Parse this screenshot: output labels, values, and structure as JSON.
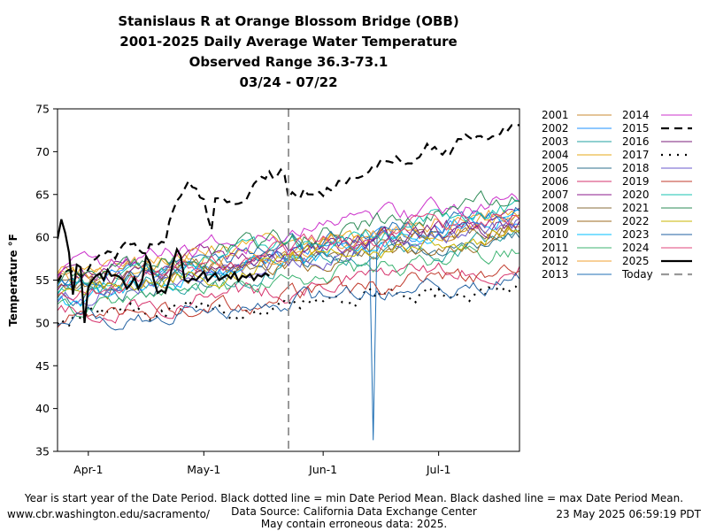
{
  "chart_data": {
    "type": "line",
    "title": [
      "Stanislaus R at Orange Blossom Bridge (OBB)",
      "2001-2025 Daily Average Water Temperature",
      "Observed Range 36.3-73.1",
      "03/24 - 07/22"
    ],
    "xlabel": "",
    "ylabel": "Temperature °F",
    "x_range_days": [
      0,
      120
    ],
    "ylim": [
      35,
      75
    ],
    "y_ticks": [
      35,
      40,
      45,
      50,
      55,
      60,
      65,
      70,
      75
    ],
    "x_ticks": [
      {
        "label": "Apr-1",
        "day": 8
      },
      {
        "label": "May-1",
        "day": 38
      },
      {
        "label": "Jun-1",
        "day": 69
      },
      {
        "label": "Jul-1",
        "day": 99
      }
    ],
    "today_day": 60,
    "legend_placement": "outside-right",
    "series": [
      {
        "name": "2001",
        "color": "#c88a30",
        "style": "solid",
        "start": 54.8,
        "slope": 0.06
      },
      {
        "name": "2002",
        "color": "#1e90ff",
        "style": "solid",
        "start": 54.0,
        "slope": 0.07
      },
      {
        "name": "2003",
        "color": "#20a0a0",
        "style": "solid",
        "start": 53.0,
        "slope": 0.06
      },
      {
        "name": "2004",
        "color": "#e6a817",
        "style": "solid",
        "start": 55.5,
        "slope": 0.06
      },
      {
        "name": "2005",
        "color": "#2e6f8e",
        "style": "solid",
        "start": 52.5,
        "slope": 0.07
      },
      {
        "name": "2006",
        "color": "#d6336c",
        "style": "solid",
        "start": 51.0,
        "slope": 0.05
      },
      {
        "name": "2007",
        "color": "#8b1a8b",
        "style": "solid",
        "start": 55.0,
        "slope": 0.06
      },
      {
        "name": "2008",
        "color": "#8a6d3b",
        "style": "solid",
        "start": 54.0,
        "slope": 0.06
      },
      {
        "name": "2009",
        "color": "#9c6b1f",
        "style": "solid",
        "start": 53.5,
        "slope": 0.06
      },
      {
        "name": "2010",
        "color": "#00bfff",
        "style": "solid",
        "start": 52.0,
        "slope": 0.09
      },
      {
        "name": "2011",
        "color": "#3cb371",
        "style": "solid",
        "start": 51.5,
        "slope": 0.06
      },
      {
        "name": "2012",
        "color": "#f0a030",
        "style": "solid",
        "start": 55.0,
        "slope": 0.07
      },
      {
        "name": "2013",
        "color": "#1f6fb4",
        "style": "solid",
        "start": 54.0,
        "slope": 0.08
      },
      {
        "name": "2014",
        "color": "#cc33cc",
        "style": "solid",
        "start": 56.0,
        "slope": 0.07
      },
      {
        "name": "2015",
        "color": "#000000",
        "style": "dashed",
        "start": 55.5,
        "slope": 0.15
      },
      {
        "name": "2016",
        "color": "#7b1f7b",
        "style": "solid",
        "start": 54.5,
        "slope": 0.06
      },
      {
        "name": "2017",
        "color": "#000000",
        "style": "dotted",
        "start": 50.5,
        "slope": 0.03
      },
      {
        "name": "2018",
        "color": "#6a5acd",
        "style": "solid",
        "start": 53.0,
        "slope": 0.07
      },
      {
        "name": "2019",
        "color": "#c0392b",
        "style": "solid",
        "start": 50.0,
        "slope": 0.05
      },
      {
        "name": "2020",
        "color": "#17c3b2",
        "style": "solid",
        "start": 54.0,
        "slope": 0.08
      },
      {
        "name": "2021",
        "color": "#2e8b57",
        "style": "solid",
        "start": 55.0,
        "slope": 0.08
      },
      {
        "name": "2022",
        "color": "#c8b400",
        "style": "solid",
        "start": 53.5,
        "slope": 0.06
      },
      {
        "name": "2023",
        "color": "#1f5fa0",
        "style": "solid",
        "start": 50.0,
        "slope": 0.04
      },
      {
        "name": "2024",
        "color": "#e0457b",
        "style": "solid",
        "start": 53.5,
        "slope": 0.08
      },
      {
        "name": "2025",
        "color": "#000000",
        "style": "bold",
        "points": [
          [
            0,
            59.8
          ],
          [
            1,
            62.1
          ],
          [
            2,
            60.5
          ],
          [
            3,
            58.2
          ],
          [
            4,
            53.3
          ],
          [
            5,
            56.8
          ],
          [
            6,
            56.5
          ],
          [
            7,
            50.0
          ],
          [
            8,
            54.2
          ],
          [
            9,
            55.0
          ],
          [
            10,
            55.5
          ],
          [
            11,
            55.8
          ],
          [
            12,
            55.0
          ],
          [
            13,
            56.2
          ],
          [
            14,
            55.5
          ],
          [
            15,
            55.6
          ],
          [
            16,
            55.4
          ],
          [
            17,
            55.0
          ],
          [
            18,
            54.0
          ],
          [
            19,
            54.5
          ],
          [
            20,
            55.3
          ],
          [
            21,
            54.0
          ],
          [
            22,
            55.0
          ],
          [
            23,
            57.8
          ],
          [
            24,
            57.0
          ],
          [
            25,
            55.0
          ],
          [
            26,
            53.5
          ],
          [
            27,
            53.8
          ],
          [
            28,
            53.5
          ],
          [
            29,
            55.0
          ],
          [
            30,
            57.0
          ],
          [
            31,
            58.6
          ],
          [
            32,
            57.8
          ],
          [
            33,
            55.0
          ],
          [
            34,
            54.8
          ],
          [
            35,
            55.2
          ],
          [
            36,
            55.0
          ],
          [
            37,
            55.5
          ],
          [
            38,
            56.0
          ],
          [
            39,
            54.9
          ],
          [
            40,
            55.4
          ],
          [
            41,
            55.8
          ],
          [
            42,
            55.0
          ],
          [
            43,
            55.3
          ],
          [
            44,
            55.6
          ],
          [
            45,
            55.2
          ],
          [
            46,
            55.9
          ],
          [
            47,
            54.9
          ],
          [
            48,
            55.5
          ],
          [
            49,
            55.3
          ],
          [
            50,
            55.7
          ],
          [
            51,
            55.0
          ],
          [
            52,
            55.6
          ],
          [
            53,
            55.4
          ],
          [
            54,
            55.8
          ],
          [
            55,
            55.5
          ]
        ]
      }
    ]
  },
  "legend": {
    "today_label": "Today"
  },
  "footer": {
    "note": "Year is start year of the Date Period. Black dotted line = min Date Period Mean. Black dashed line = max Date Period Mean.",
    "source": "Data Source: California Data Exchange Center",
    "caveat": "May contain erroneous data: 2025.",
    "url": "www.cbr.washington.edu/sacramento/",
    "timestamp": "23 May 2025 06:59:19 PDT"
  }
}
